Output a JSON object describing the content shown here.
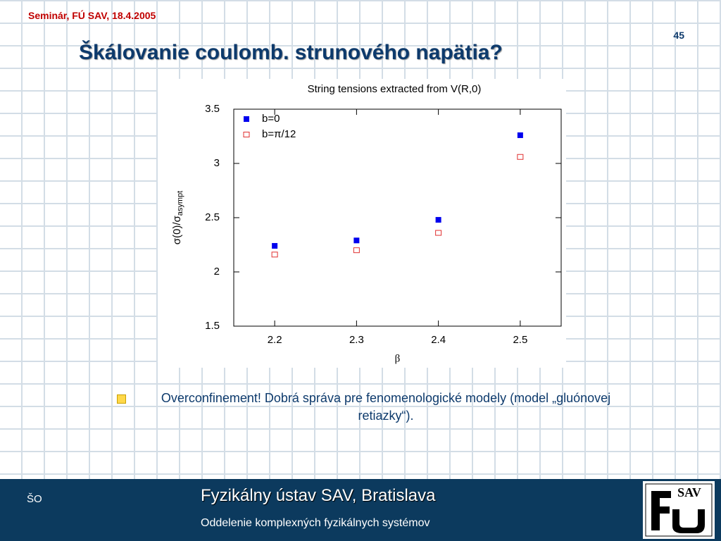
{
  "header": {
    "event": "Seminár, FÚ SAV, 18.4.2005",
    "page": "45",
    "title": "Škálovanie coulomb. strunového napätia?"
  },
  "chart_data": {
    "type": "scatter",
    "title": "String tensions extracted from V(R,0)",
    "xlabel": "β",
    "ylabel": [
      "σ(0)/σ",
      "asympt"
    ],
    "series": [
      {
        "name": "b=0",
        "color": "#0000ee",
        "x": [
          2.2,
          2.3,
          2.4,
          2.5
        ],
        "values": [
          2.24,
          2.29,
          2.48,
          3.26
        ]
      },
      {
        "name": "b=π/12",
        "color": "#e03030",
        "x": [
          2.2,
          2.3,
          2.4,
          2.5
        ],
        "values": [
          2.16,
          2.2,
          2.36,
          3.06
        ]
      }
    ],
    "xlim": [
      2.15,
      2.55
    ],
    "xticks": [
      2.2,
      2.3,
      2.4,
      2.5
    ],
    "ylim": [
      1.5,
      3.5
    ],
    "yticks": [
      1.5,
      2,
      2.5,
      3,
      3.5
    ],
    "legend": "upper-left"
  },
  "bullet": "Overconfinement! Dobrá správa pre fenomenologické modely (model „gluónovej retiazky“).",
  "footer": {
    "left": "ŠO",
    "title": "Fyzikálny ústav SAV, Bratislava",
    "subtitle": "Oddelenie komplexných fyzikálnych systémov",
    "logo": "SAV"
  }
}
